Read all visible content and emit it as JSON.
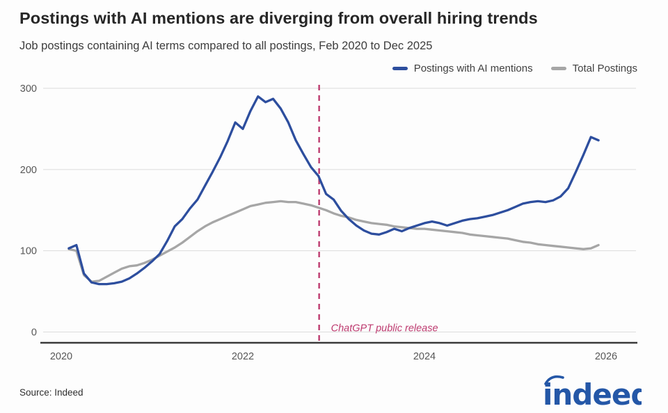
{
  "header": {
    "title": "Postings with AI mentions are diverging from overall hiring trends",
    "subtitle": "Job postings containing AI terms compared to all postings, Feb 2020 to Dec 2025"
  },
  "legend": [
    {
      "label": "Postings with AI mentions",
      "color": "#2d4e9e"
    },
    {
      "label": "Total Postings",
      "color": "#a6a6a6"
    }
  ],
  "annotation": {
    "label": "ChatGPT public release",
    "x_year": 2022.84,
    "color": "#bd3a6f"
  },
  "footer": {
    "source": "Source: Indeed",
    "logo_text": "indeed",
    "logo_color": "#2457a7"
  },
  "colors": {
    "grid": "#dcdcdc",
    "axis": "#3a3a3a",
    "tick_text": "#575757",
    "background": "#fdfdfd"
  },
  "chart_data": {
    "type": "line",
    "x_start": "2020-02",
    "x_frequency": "monthly",
    "x_end": "2025-12",
    "xlim": [
      2020,
      2026.1
    ],
    "ylim": [
      0,
      300
    ],
    "x_ticks": [
      2020,
      2022,
      2024,
      2026
    ],
    "y_ticks": [
      0,
      100,
      200,
      300
    ],
    "grid": true,
    "legend_position": "top-right",
    "index_base": 100,
    "series": [
      {
        "name": "Postings with AI mentions",
        "color": "#2d4e9e",
        "values": [
          103,
          107,
          72,
          61,
          59,
          59,
          60,
          62,
          66,
          72,
          79,
          87,
          96,
          112,
          130,
          139,
          152,
          163,
          180,
          197,
          215,
          235,
          258,
          250,
          272,
          290,
          283,
          287,
          275,
          258,
          236,
          219,
          203,
          192,
          170,
          163,
          149,
          139,
          131,
          125,
          121,
          120,
          123,
          127,
          124,
          128,
          131,
          134,
          136,
          134,
          131,
          134,
          137,
          139,
          140,
          142,
          144,
          147,
          150,
          154,
          158,
          160,
          161,
          160,
          162,
          167,
          177,
          197,
          218,
          240,
          236
        ]
      },
      {
        "name": "Total Postings",
        "color": "#a6a6a6",
        "values": [
          102,
          100,
          70,
          62,
          63,
          68,
          73,
          78,
          81,
          82,
          85,
          89,
          94,
          99,
          104,
          110,
          117,
          124,
          130,
          135,
          139,
          143,
          147,
          151,
          155,
          157,
          159,
          160,
          161,
          160,
          160,
          158,
          156,
          153,
          150,
          146,
          143,
          141,
          138,
          136,
          134,
          133,
          132,
          130,
          129,
          128,
          127,
          127,
          126,
          125,
          124,
          123,
          122,
          120,
          119,
          118,
          117,
          116,
          115,
          113,
          111,
          110,
          108,
          107,
          106,
          105,
          104,
          103,
          102,
          103,
          107
        ]
      }
    ]
  }
}
